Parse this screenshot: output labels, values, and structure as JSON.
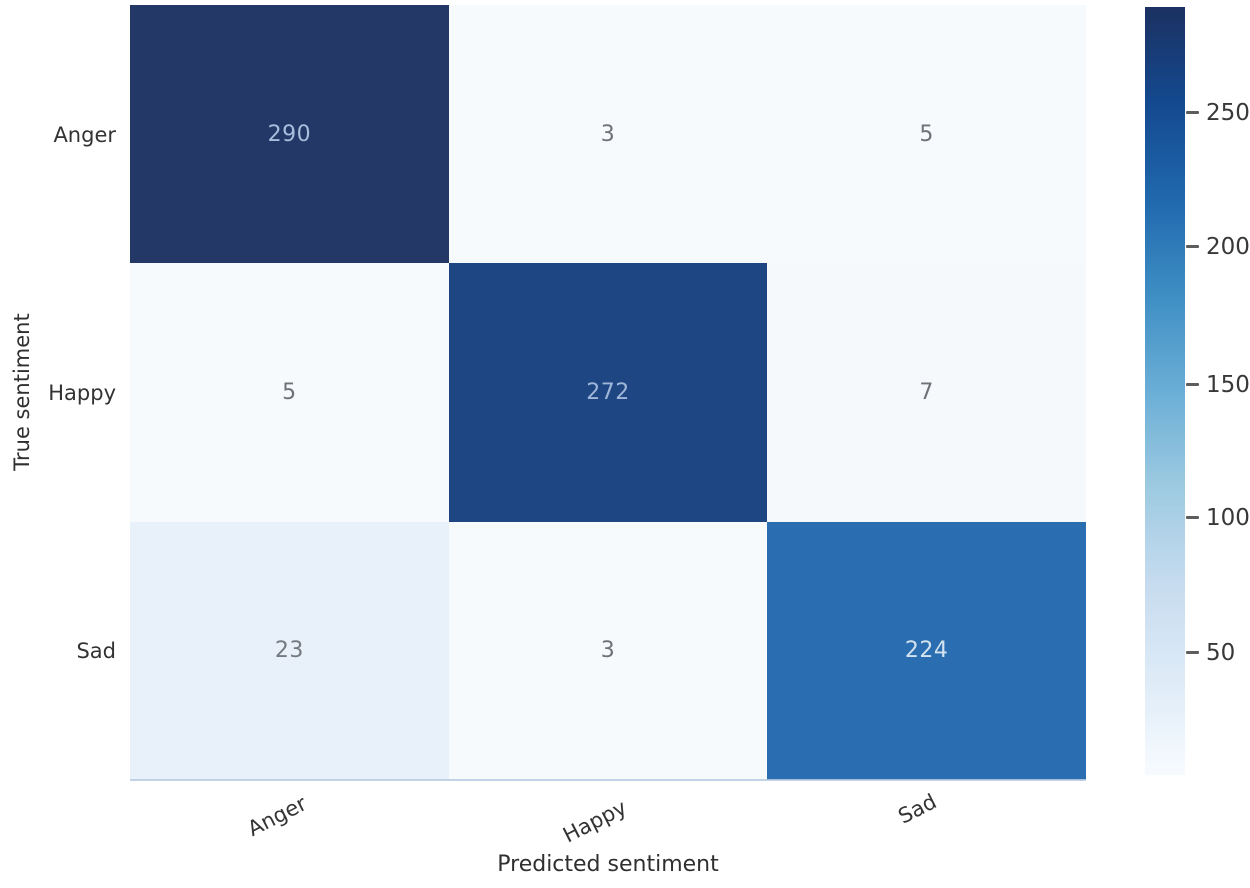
{
  "figure": {
    "xlabel": "Predicted sentiment",
    "ylabel": "True sentiment",
    "x_ticklabels": [
      "Anger",
      "Happy",
      "Sad"
    ],
    "y_ticklabels": [
      "Anger",
      "Happy",
      "Sad"
    ],
    "colorbar_ticklabels": [
      "250",
      "200",
      "150",
      "100",
      "50"
    ]
  },
  "chart_data": {
    "type": "heatmap",
    "title": "",
    "xlabel": "Predicted sentiment",
    "ylabel": "True sentiment",
    "x": [
      "Anger",
      "Happy",
      "Sad"
    ],
    "y": [
      "Anger",
      "Happy",
      "Sad"
    ],
    "matrix": [
      [
        290,
        3,
        5
      ],
      [
        5,
        272,
        7
      ],
      [
        23,
        3,
        224
      ]
    ],
    "colormap": "Blues",
    "vmin": 3,
    "vmax": 290,
    "grid": false,
    "colorbar": {
      "position": "right",
      "ticks": [
        50,
        100,
        150,
        200,
        250
      ]
    }
  },
  "colors": {
    "cell_bg": [
      [
        "#233867",
        "#f6fafd",
        "#f6fafd"
      ],
      [
        "#f6fafd",
        "#1e4683",
        "#f5f9fc"
      ],
      [
        "#e8f0fa",
        "#f6fafd",
        "#2b6db1"
      ]
    ],
    "cell_text": [
      [
        "#a9bedd",
        "#6e7277",
        "#6e7277"
      ],
      [
        "#6e7277",
        "#9fb6d8",
        "#6e7277"
      ],
      [
        "#75797f",
        "#6e7277",
        "#d3e2ef"
      ]
    ],
    "axis_text": "#2f2f2f",
    "tick_text": "#333333",
    "colorbar_gradient": [
      "#1b3161",
      "#14498f",
      "#2068ad",
      "#3e8ec4",
      "#6aaed6",
      "#9dcae1",
      "#c6dbef",
      "#deebf7",
      "#f7fbff"
    ]
  }
}
